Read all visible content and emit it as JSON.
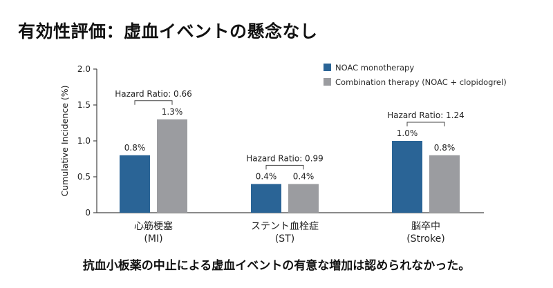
{
  "title": "有効性評価：虚血イベントの懸念なし",
  "conclusion": "抗血小板薬の中止による虚血イベントの有意な増加は認められなかった。",
  "colors": {
    "noac": "#2A6496",
    "combination": "#9B9CA0",
    "axis": "#444444",
    "text": "#222222"
  },
  "chart_data": {
    "type": "bar",
    "categories": [
      {
        "line1": "心筋梗塞",
        "line2": "(MI)"
      },
      {
        "line1": "ステント血栓症",
        "line2": "(ST)"
      },
      {
        "line1": "脳卒中",
        "line2": "(Stroke)"
      }
    ],
    "series": [
      {
        "name": "NOAC monotherapy",
        "values": [
          0.8,
          0.4,
          1.0
        ],
        "labels": [
          "0.8%",
          "0.4%",
          "1.0%"
        ]
      },
      {
        "name": "Combination therapy (NOAC + clopidogrel)",
        "values": [
          1.3,
          0.4,
          0.8
        ],
        "labels": [
          "1.3%",
          "0.4%",
          "0.8%"
        ]
      }
    ],
    "hazard_ratios": [
      "Hazard Ratio: 0.66",
      "Hazard Ratio: 0.99",
      "Hazard Ratio: 1.24"
    ],
    "ylabel": "Cumulative Incidence (%)",
    "xlabel": "",
    "ylim": [
      0,
      2.0
    ],
    "yticks": [
      "0",
      "0.5",
      "1.0",
      "1.5",
      "2.0"
    ],
    "grid": false,
    "legend_position": "top-right"
  }
}
